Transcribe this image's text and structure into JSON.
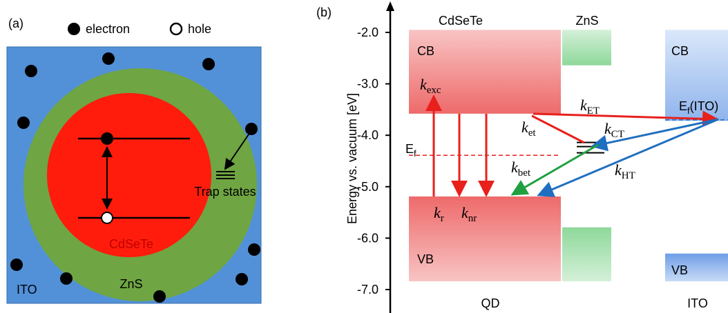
{
  "panel_a": {
    "label": "(a)",
    "legend": {
      "electron": "electron",
      "hole": "hole"
    },
    "labels": {
      "trap": "Trap states",
      "core": "CdSeTe",
      "shell": "ZnS",
      "substrate": "ITO"
    }
  },
  "panel_b": {
    "label": "(b)",
    "y_label": "Energy vs. vacuum [eV]",
    "ylim": [
      -7.5,
      -1.5
    ],
    "yticks": [
      {
        "value": -2,
        "label": "-2.0"
      },
      {
        "value": -3,
        "label": "-3.0"
      },
      {
        "value": -4,
        "label": "-4.0"
      },
      {
        "value": -5,
        "label": "-5.0"
      },
      {
        "value": -6,
        "label": "-6.0"
      },
      {
        "value": -7,
        "label": "-7.0"
      }
    ],
    "headers": {
      "core": "CdSeTe",
      "shell": "ZnS",
      "qd": "QD",
      "ito": "ITO"
    },
    "band_labels": [
      "CB",
      "VB",
      "CB",
      "VB"
    ],
    "fermi": {
      "qd": {
        "main": "E",
        "sub": "f"
      },
      "ito": {
        "main": "E",
        "sub": "f",
        "suffix": "(ITO)"
      }
    },
    "rates": [
      {
        "main": "k",
        "sub": "exc"
      },
      {
        "main": "k",
        "sub": "ET"
      },
      {
        "main": "k",
        "sub": "et"
      },
      {
        "main": "k",
        "sub": "CT"
      },
      {
        "main": "k",
        "sub": "bet"
      },
      {
        "main": "k",
        "sub": "HT"
      },
      {
        "main": "k",
        "sub": "r"
      },
      {
        "main": "k",
        "sub": "nr"
      }
    ],
    "levels": {
      "core_cb": [
        -3.58,
        -1.95
      ],
      "core_vb": [
        -6.84,
        -5.19
      ],
      "shell_cb": [
        -2.64,
        -1.95
      ],
      "shell_vb": [
        -6.84,
        -5.79
      ],
      "ito_cb": [
        -3.72,
        -1.95
      ],
      "ito_vb": [
        -6.84,
        -6.3
      ],
      "ef_qd": -4.39,
      "ef_ito": -3.7,
      "traps": [
        -4.14,
        -4.22,
        -4.34
      ]
    }
  }
}
